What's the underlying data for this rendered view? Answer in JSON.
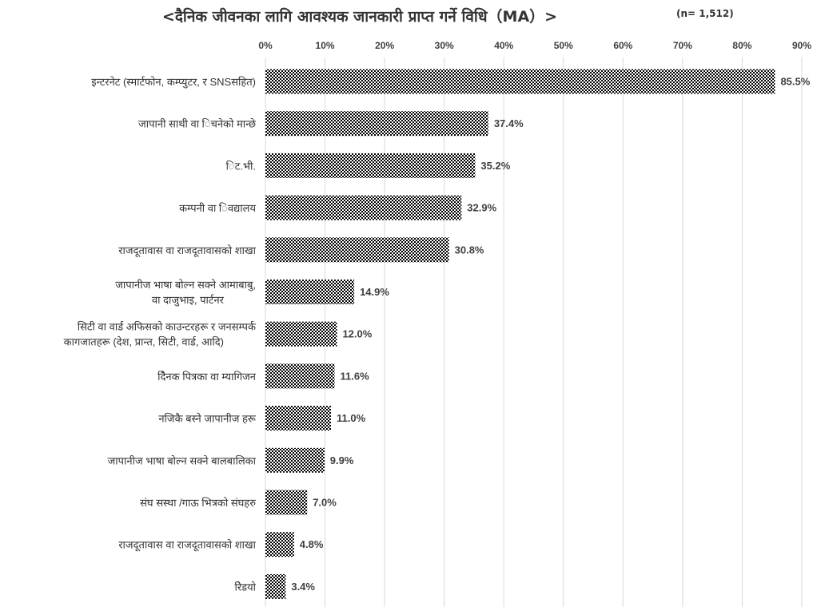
{
  "title": "<दैनिक जीवनका लागि आवश्यक जानकारी प्राप्त गर्ने विधि（MA）>",
  "sample_note": "(n= 1,512)",
  "chart_data": {
    "type": "bar",
    "orientation": "horizontal",
    "title": "<दैनिक जीवनका लागि आवश्यक जानकारी प्राप्त गर्ने विधि（MA）>",
    "xlabel": "",
    "ylabel": "",
    "xlim": [
      0,
      90
    ],
    "ticks": [
      0,
      10,
      20,
      30,
      40,
      50,
      60,
      70,
      80,
      90
    ],
    "tick_labels": [
      "0%",
      "10%",
      "20%",
      "30%",
      "40%",
      "50%",
      "60%",
      "70%",
      "80%",
      "90%"
    ],
    "axis_position": "top",
    "grid": true,
    "bar_pattern": "checkered black and white",
    "categories": [
      [
        "इन्टरनेट (स्मार्टफोन, कम्प्युटर, र SNSसहित)"
      ],
      [
        "जापानी साथी वा िचनेको मान्छे"
      ],
      [
        "िट.भी."
      ],
      [
        "कम्पनी वा िवद्यालय"
      ],
      [
        "राजदूतावास वा राजदूतावासको शाखा"
      ],
      [
        "जापानीज भाषा बोल्न सक्ने आमाबाबु,",
        "वा दाजुभाइ, पार्टनर"
      ],
      [
        "सिटी वा वार्ड अफिसको काउन्टरहरू र जनसम्पर्क",
        "कागजातहरू (देश, प्रान्त, सिटी, वार्ड, आदि)"
      ],
      [
        "दैिनक पित्रका वा म्यागिजन"
      ],
      [
        "नजिकै बस्ने जापानीज हरू"
      ],
      [
        "जापानीज भाषा बोल्न सक्ने बालबालिका"
      ],
      [
        "संघ सस्था /गाऊ भित्रको संघहरु"
      ],
      [
        "राजदूतावास वा राजदूतावासको शाखा"
      ],
      [
        "रेिडयो"
      ]
    ],
    "values": [
      85.5,
      37.4,
      35.2,
      32.9,
      30.8,
      14.9,
      12.0,
      11.6,
      11.0,
      9.9,
      7.0,
      4.8,
      3.4
    ],
    "value_labels": [
      "85.5%",
      "37.4%",
      "35.2%",
      "32.9%",
      "30.8%",
      "14.9%",
      "12.0%",
      "11.6%",
      "11.0%",
      "9.9%",
      "7.0%",
      "4.8%",
      "3.4%"
    ]
  }
}
